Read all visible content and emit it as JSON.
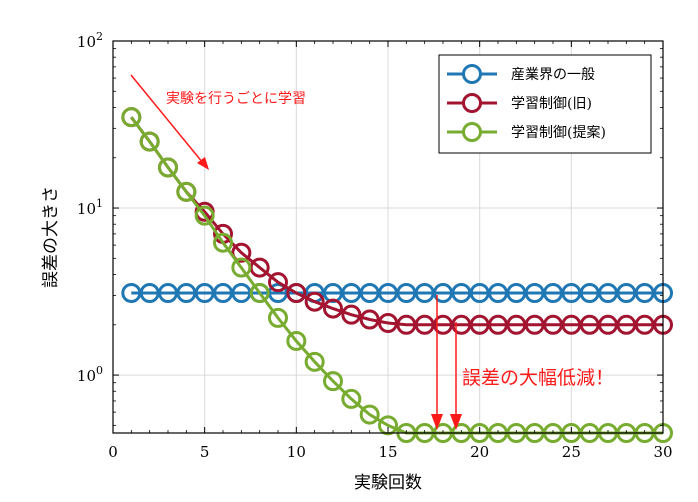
{
  "chart_data": {
    "type": "line",
    "xlabel": "実験回数",
    "ylabel": "誤差の大きさ",
    "xlim": [
      0,
      30
    ],
    "ylim": [
      0.45,
      100
    ],
    "yscale": "log",
    "grid": true,
    "legend_position": "top-right",
    "x_ticks": [
      0,
      5,
      10,
      15,
      20,
      25,
      30
    ],
    "y_ticks": [
      {
        "value": 1,
        "base": "10",
        "exp": "0"
      },
      {
        "value": 10,
        "base": "10",
        "exp": "1"
      },
      {
        "value": 100,
        "base": "10",
        "exp": "2"
      }
    ],
    "series": [
      {
        "name": "産業界の一般",
        "color": "#1f77b4",
        "x": [
          1,
          2,
          3,
          4,
          5,
          6,
          7,
          8,
          9,
          10,
          11,
          12,
          13,
          14,
          15,
          16,
          17,
          18,
          19,
          20,
          21,
          22,
          23,
          24,
          25,
          26,
          27,
          28,
          29,
          30
        ],
        "y": [
          3.1,
          3.1,
          3.1,
          3.1,
          3.1,
          3.1,
          3.1,
          3.1,
          3.1,
          3.1,
          3.1,
          3.1,
          3.1,
          3.1,
          3.1,
          3.1,
          3.1,
          3.1,
          3.1,
          3.1,
          3.1,
          3.1,
          3.1,
          3.1,
          3.1,
          3.1,
          3.1,
          3.1,
          3.1,
          3.1
        ]
      },
      {
        "name": "学習制御(旧)",
        "color": "#a2142f",
        "x": [
          1,
          2,
          3,
          4,
          5,
          6,
          7,
          8,
          9,
          10,
          11,
          12,
          13,
          14,
          15,
          16,
          17,
          18,
          19,
          20,
          21,
          22,
          23,
          24,
          25,
          26,
          27,
          28,
          29,
          30
        ],
        "y": [
          35,
          25,
          17.5,
          12.5,
          9.5,
          7.0,
          5.4,
          4.4,
          3.6,
          3.1,
          2.75,
          2.5,
          2.3,
          2.15,
          2.05,
          2.0,
          2.0,
          2.0,
          2.0,
          2.0,
          2.0,
          2.0,
          2.0,
          2.0,
          2.0,
          2.0,
          2.0,
          2.0,
          2.0,
          2.0
        ]
      },
      {
        "name": "学習制御(提案)",
        "color": "#77ac30",
        "x": [
          1,
          2,
          3,
          4,
          5,
          6,
          7,
          8,
          9,
          10,
          11,
          12,
          13,
          14,
          15,
          16,
          17,
          18,
          19,
          20,
          21,
          22,
          23,
          24,
          25,
          26,
          27,
          28,
          29,
          30
        ],
        "y": [
          35,
          25,
          17.5,
          12.5,
          9.0,
          6.2,
          4.4,
          3.1,
          2.2,
          1.6,
          1.2,
          0.92,
          0.72,
          0.58,
          0.5,
          0.45,
          0.45,
          0.45,
          0.45,
          0.45,
          0.45,
          0.45,
          0.45,
          0.45,
          0.45,
          0.45,
          0.45,
          0.45,
          0.45,
          0.45
        ]
      }
    ],
    "annotations": [
      {
        "text": "実験を行うごとに学習",
        "color": "#ff1a1a"
      },
      {
        "text": "誤差の大幅低減！",
        "color": "#ff1a1a"
      }
    ]
  }
}
